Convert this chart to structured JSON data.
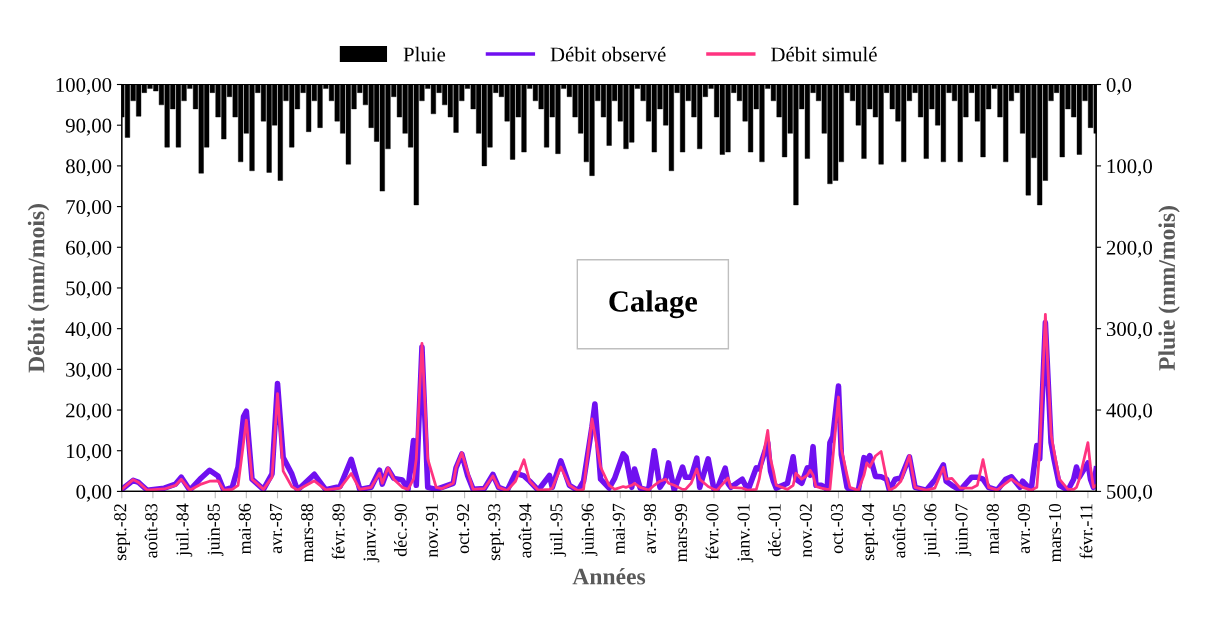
{
  "chart_data": {
    "type": "line",
    "xlabel": "Années",
    "ylabel": "Débit (mm/mois)",
    "y2label": "Pluie (mm/mois)",
    "annotations": [
      "Calage"
    ],
    "legend": "top",
    "xlim": [
      "1982-09",
      "2011-05"
    ],
    "xticks": [
      {
        "value": "1982-09",
        "label": "sept.-82"
      },
      {
        "value": "1983-08",
        "label": "août-83"
      },
      {
        "value": "1984-07",
        "label": "juil.-84"
      },
      {
        "value": "1985-06",
        "label": "juin-85"
      },
      {
        "value": "1986-05",
        "label": "mai-86"
      },
      {
        "value": "1987-04",
        "label": "avr.-87"
      },
      {
        "value": "1988-03",
        "label": "mars-88"
      },
      {
        "value": "1989-02",
        "label": "févr.-89"
      },
      {
        "value": "1990-01",
        "label": "janv.-90"
      },
      {
        "value": "1990-12",
        "label": "déc.-90"
      },
      {
        "value": "1991-11",
        "label": "nov.-91"
      },
      {
        "value": "1992-10",
        "label": "oct.-92"
      },
      {
        "value": "1993-09",
        "label": "sept.-93"
      },
      {
        "value": "1994-08",
        "label": "août-94"
      },
      {
        "value": "1995-07",
        "label": "juil.-95"
      },
      {
        "value": "1996-06",
        "label": "juin-96"
      },
      {
        "value": "1997-05",
        "label": "mai-97"
      },
      {
        "value": "1998-04",
        "label": "avr.-98"
      },
      {
        "value": "1999-03",
        "label": "mars-99"
      },
      {
        "value": "2000-02",
        "label": "févr.-00"
      },
      {
        "value": "2001-01",
        "label": "janv.-01"
      },
      {
        "value": "2001-12",
        "label": "déc.-01"
      },
      {
        "value": "2002-11",
        "label": "nov.-02"
      },
      {
        "value": "2003-10",
        "label": "oct.-03"
      },
      {
        "value": "2004-09",
        "label": "sept.-04"
      },
      {
        "value": "2005-08",
        "label": "août-05"
      },
      {
        "value": "2006-07",
        "label": "juil.-06"
      },
      {
        "value": "2007-06",
        "label": "juin-07"
      },
      {
        "value": "2008-05",
        "label": "mai-08"
      },
      {
        "value": "2009-04",
        "label": "avr.-09"
      },
      {
        "value": "2010-03",
        "label": "mars-10"
      },
      {
        "value": "2011-02",
        "label": "févr.-11"
      }
    ],
    "ylim": [
      0,
      100
    ],
    "yticks": [
      {
        "value": 0,
        "label": "0,00"
      },
      {
        "value": 10,
        "label": "10,00"
      },
      {
        "value": 20,
        "label": "20,00"
      },
      {
        "value": 30,
        "label": "30,00"
      },
      {
        "value": 40,
        "label": "40,00"
      },
      {
        "value": 50,
        "label": "50,00"
      },
      {
        "value": 60,
        "label": "60,00"
      },
      {
        "value": 70,
        "label": "70,00"
      },
      {
        "value": 80,
        "label": "80,00"
      },
      {
        "value": 90,
        "label": "90,00"
      },
      {
        "value": 100,
        "label": "100,00"
      }
    ],
    "y2lim": [
      500,
      0
    ],
    "y2ticks": [
      {
        "value": 0,
        "label": "0,0"
      },
      {
        "value": 100,
        "label": "100,0"
      },
      {
        "value": 200,
        "label": "200,0"
      },
      {
        "value": 300,
        "label": "300,0"
      },
      {
        "value": 400,
        "label": "400,0"
      },
      {
        "value": 500,
        "label": "500,0"
      }
    ],
    "x": [
      "1982-09",
      "1983-01",
      "1983-03",
      "1983-06",
      "1983-12",
      "1984-04",
      "1984-06",
      "1984-09",
      "1985-01",
      "1985-04",
      "1985-07",
      "1985-09",
      "1985-12",
      "1986-02",
      "1986-04",
      "1986-05",
      "1986-07",
      "1986-11",
      "1987-02",
      "1987-04",
      "1987-06",
      "1987-09",
      "1987-11",
      "1988-05",
      "1988-09",
      "1989-02",
      "1989-06",
      "1989-09",
      "1990-01",
      "1990-04",
      "1990-05",
      "1990-07",
      "1990-09",
      "1990-12",
      "1991-02",
      "1991-04",
      "1991-05",
      "1991-07",
      "1991-09",
      "1991-12",
      "1992-02",
      "1992-06",
      "1992-07",
      "1992-09",
      "1992-11",
      "1993-01",
      "1993-05",
      "1993-08",
      "1993-10",
      "1994-01",
      "1994-04",
      "1994-07",
      "1994-09",
      "1994-12",
      "1995-04",
      "1995-05",
      "1995-08",
      "1995-11",
      "1996-02",
      "1996-04",
      "1996-07",
      "1996-08",
      "1996-10",
      "1997-01",
      "1997-03",
      "1997-06",
      "1997-07",
      "1997-09",
      "1997-10",
      "1997-12",
      "1998-03",
      "1998-05",
      "1998-07",
      "1998-09",
      "1998-10",
      "1998-12",
      "1999-03",
      "1999-04",
      "1999-06",
      "1999-08",
      "1999-09",
      "1999-12",
      "2000-02",
      "2000-03",
      "2000-06",
      "2000-07",
      "2000-08",
      "2000-12",
      "2001-02",
      "2001-05",
      "2001-06",
      "2001-09",
      "2001-10",
      "2001-11",
      "2001-12",
      "2002-04",
      "2002-06",
      "2002-07",
      "2002-09",
      "2002-11",
      "2002-12",
      "2003-01",
      "2003-02",
      "2003-04",
      "2003-06",
      "2003-07",
      "2003-08",
      "2003-10",
      "2003-11",
      "2004-01",
      "2004-02",
      "2004-05",
      "2004-07",
      "2004-08",
      "2004-09",
      "2004-11",
      "2005-01",
      "2005-03",
      "2005-04",
      "2005-06",
      "2005-08",
      "2005-11",
      "2006-01",
      "2006-05",
      "2006-08",
      "2006-11",
      "2006-12",
      "2007-02",
      "2007-05",
      "2007-09",
      "2007-11",
      "2008-01",
      "2008-03",
      "2008-06",
      "2008-09",
      "2008-11",
      "2009-02",
      "2009-03",
      "2009-06",
      "2009-08",
      "2009-09",
      "2009-11",
      "2010-01",
      "2010-02",
      "2010-04",
      "2010-07",
      "2010-09",
      "2010-10",
      "2010-11",
      "2011-02",
      "2011-03",
      "2011-04",
      "2011-05"
    ],
    "series": [
      {
        "name": "Pluie",
        "type": "bar",
        "axis": "y2",
        "color": "#000000",
        "x": [
          "1982-09",
          "1982-11",
          "1983-01",
          "1983-03",
          "1983-05",
          "1983-07",
          "1983-09",
          "1983-11",
          "1984-01",
          "1984-03",
          "1984-05",
          "1984-07",
          "1984-09",
          "1984-11",
          "1985-01",
          "1985-03",
          "1985-05",
          "1985-07",
          "1985-09",
          "1985-11",
          "1986-01",
          "1986-03",
          "1986-05",
          "1986-07",
          "1986-09",
          "1986-11",
          "1987-01",
          "1987-03",
          "1987-05",
          "1987-07",
          "1987-09",
          "1987-11",
          "1988-01",
          "1988-03",
          "1988-05",
          "1988-07",
          "1988-09",
          "1988-11",
          "1989-01",
          "1989-03",
          "1989-05",
          "1989-07",
          "1989-09",
          "1989-11",
          "1990-01",
          "1990-03",
          "1990-05",
          "1990-07",
          "1990-09",
          "1990-11",
          "1991-01",
          "1991-03",
          "1991-05",
          "1991-07",
          "1991-09",
          "1991-11",
          "1992-01",
          "1992-03",
          "1992-05",
          "1992-07",
          "1992-09",
          "1992-11",
          "1993-01",
          "1993-03",
          "1993-05",
          "1993-07",
          "1993-09",
          "1993-11",
          "1994-01",
          "1994-03",
          "1994-05",
          "1994-07",
          "1994-09",
          "1994-11",
          "1995-01",
          "1995-03",
          "1995-05",
          "1995-07",
          "1995-09",
          "1995-11",
          "1996-01",
          "1996-03",
          "1996-05",
          "1996-07",
          "1996-09",
          "1996-11",
          "1997-01",
          "1997-03",
          "1997-05",
          "1997-07",
          "1997-09",
          "1997-11",
          "1998-01",
          "1998-03",
          "1998-05",
          "1998-07",
          "1998-09",
          "1998-11",
          "1999-01",
          "1999-03",
          "1999-05",
          "1999-07",
          "1999-09",
          "1999-11",
          "2000-01",
          "2000-03",
          "2000-05",
          "2000-07",
          "2000-09",
          "2000-11",
          "2001-01",
          "2001-03",
          "2001-05",
          "2001-07",
          "2001-09",
          "2001-11",
          "2002-01",
          "2002-03",
          "2002-05",
          "2002-07",
          "2002-09",
          "2002-11",
          "2003-01",
          "2003-03",
          "2003-05",
          "2003-07",
          "2003-09",
          "2003-11",
          "2004-01",
          "2004-03",
          "2004-05",
          "2004-07",
          "2004-09",
          "2004-11",
          "2005-01",
          "2005-03",
          "2005-05",
          "2005-07",
          "2005-09",
          "2005-11",
          "2006-01",
          "2006-03",
          "2006-05",
          "2006-07",
          "2006-09",
          "2006-11",
          "2007-01",
          "2007-03",
          "2007-05",
          "2007-07",
          "2007-09",
          "2007-11",
          "2008-01",
          "2008-03",
          "2008-05",
          "2008-07",
          "2008-09",
          "2008-11",
          "2009-01",
          "2009-03",
          "2009-05",
          "2009-07",
          "2009-09",
          "2009-11",
          "2010-01",
          "2010-03",
          "2010-05",
          "2010-07",
          "2010-09",
          "2010-11",
          "2011-01",
          "2011-03",
          "2011-05"
        ],
        "values": [
          40,
          65,
          20,
          39,
          10,
          5,
          8,
          25,
          77,
          30,
          77,
          20,
          5,
          30,
          109,
          77,
          10,
          40,
          67,
          15,
          40,
          95,
          60,
          106,
          10,
          45,
          108,
          50,
          118,
          20,
          77,
          30,
          10,
          58,
          20,
          53,
          5,
          20,
          45,
          60,
          98,
          30,
          10,
          25,
          53,
          70,
          131,
          79,
          15,
          40,
          60,
          77,
          148,
          20,
          5,
          36,
          10,
          25,
          40,
          59,
          20,
          5,
          30,
          60,
          100,
          77,
          10,
          15,
          45,
          92,
          40,
          83,
          5,
          20,
          30,
          77,
          40,
          85,
          5,
          15,
          40,
          60,
          95,
          112,
          20,
          40,
          75,
          20,
          45,
          79,
          71,
          5,
          20,
          45,
          83,
          30,
          50,
          106,
          10,
          83,
          20,
          40,
          79,
          15,
          5,
          40,
          86,
          83,
          10,
          20,
          45,
          83,
          30,
          95,
          5,
          20,
          40,
          89,
          60,
          148,
          30,
          91,
          10,
          20,
          60,
          122,
          118,
          95,
          10,
          20,
          50,
          91,
          30,
          40,
          98,
          10,
          30,
          45,
          95,
          20,
          10,
          40,
          91,
          30,
          50,
          95,
          10,
          20,
          95,
          40,
          10,
          45,
          89,
          30,
          5,
          40,
          95,
          20,
          10,
          60,
          136,
          90,
          148,
          118,
          20,
          10,
          89,
          30,
          40,
          86,
          20,
          53,
          60
        ]
      },
      {
        "name": "Débit observé",
        "color": "#7010f0",
        "values": [
          0.5,
          2.7,
          2.2,
          0.3,
          0.8,
          1.8,
          3.5,
          0.3,
          3.3,
          5.2,
          3.8,
          0.3,
          1.0,
          6.0,
          18.4,
          19.7,
          3,
          0.5,
          4.3,
          26.5,
          8.3,
          4.3,
          0.3,
          4.2,
          0.4,
          1.2,
          7.9,
          0.5,
          1.0,
          5.2,
          1.8,
          5.5,
          3.2,
          2.8,
          0.5,
          12.5,
          1.5,
          35.5,
          1.0,
          0.5,
          1.0,
          2.0,
          5.8,
          9.2,
          4,
          0.5,
          0.7,
          4.2,
          1.0,
          0.2,
          4.5,
          3.8,
          2.5,
          0.3,
          3.9,
          1.0,
          7.5,
          1.5,
          0.2,
          2.5,
          16,
          21.5,
          3,
          0.8,
          3.2,
          9.2,
          8.5,
          1.0,
          5.5,
          0.8,
          0.3,
          10,
          1.0,
          3.2,
          7,
          0.3,
          6,
          3.5,
          3.5,
          8.2,
          1.0,
          8,
          0.5,
          0.2,
          5.7,
          2,
          1.0,
          3,
          0.3,
          5.8,
          5.5,
          12,
          5,
          2.5,
          0.8,
          2,
          8.5,
          3,
          2,
          5.8,
          4,
          11,
          1.5,
          1.5,
          0.5,
          12,
          13.5,
          25.9,
          9,
          1.0,
          0.3,
          0.2,
          8.3,
          7.5,
          8.8,
          3.7,
          3.6,
          3,
          0.3,
          3,
          3.3,
          8.5,
          1.0,
          0.3,
          2.8,
          6.5,
          2.5,
          1.5,
          0.3,
          3.5,
          3.5,
          3,
          1.0,
          0.3,
          3,
          3.6,
          1.0,
          2.5,
          0.3,
          11.3,
          8,
          41.5,
          12,
          8,
          1.5,
          0.3,
          3,
          6,
          3.5,
          7,
          3,
          1.0,
          5.5
        ]
      },
      {
        "name": "Débit simulé",
        "color": "#ff3380",
        "values": [
          0.5,
          2.9,
          2.2,
          0.3,
          0.6,
          1.5,
          3.0,
          0.3,
          1.8,
          2.5,
          2.6,
          0.3,
          0.5,
          1.5,
          12,
          17.5,
          3,
          0.5,
          3.5,
          24,
          5,
          1.2,
          0.3,
          2.6,
          0.4,
          0.8,
          4.4,
          0.5,
          1.0,
          4.5,
          2.0,
          5.8,
          3.0,
          1.0,
          0.5,
          3,
          8,
          36.4,
          8,
          1.0,
          0.7,
          2.0,
          5.8,
          9.5,
          5,
          0.5,
          0.7,
          3.8,
          1.0,
          0.2,
          2.5,
          7.8,
          2.5,
          0.3,
          0.5,
          0.8,
          6,
          1.5,
          0.2,
          0.5,
          17.8,
          14,
          6,
          1.5,
          0.5,
          1.2,
          1.0,
          1.5,
          2.0,
          1.0,
          0.3,
          1.5,
          2.5,
          3.0,
          2,
          1.5,
          0.5,
          0.5,
          2,
          5.5,
          3,
          1.2,
          0.5,
          0.2,
          2.5,
          3.3,
          1.0,
          0.8,
          0.3,
          0.5,
          3,
          15,
          8,
          5,
          1.5,
          0.5,
          1.5,
          4.5,
          3,
          4,
          5.2,
          4,
          1.2,
          0.8,
          0.5,
          0.5,
          8,
          23.2,
          10.5,
          4,
          1.0,
          0.2,
          4,
          7,
          6,
          8.7,
          9.8,
          3,
          0.3,
          1,
          2.5,
          8.8,
          1.0,
          0.3,
          0.8,
          5.9,
          3,
          3.2,
          0.8,
          0.8,
          1.5,
          7.8,
          1.0,
          0.3,
          2,
          3,
          1.5,
          1.0,
          0.3,
          1.0,
          10,
          43.5,
          14,
          10,
          3,
          0.5,
          0.5,
          1,
          3,
          12,
          6,
          1.0,
          1.5
        ]
      }
    ]
  }
}
